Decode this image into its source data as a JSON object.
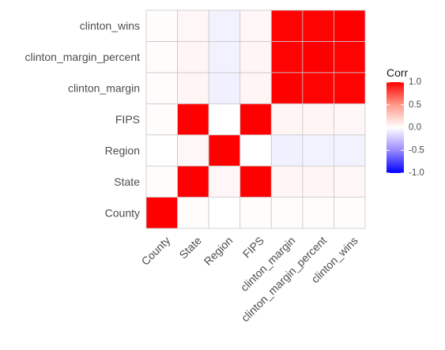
{
  "chart_data": {
    "type": "heatmap",
    "title": "",
    "xlabel": "",
    "ylabel": "",
    "variables": [
      "County",
      "State",
      "Region",
      "FIPS",
      "clinton_margin",
      "clinton_margin_percent",
      "clinton_wins"
    ],
    "x_categories": [
      "County",
      "State",
      "Region",
      "FIPS",
      "clinton_margin",
      "clinton_margin_percent",
      "clinton_wins"
    ],
    "y_categories_bottom_to_top": [
      "County",
      "State",
      "Region",
      "FIPS",
      "clinton_margin",
      "clinton_margin_percent",
      "clinton_wins"
    ],
    "matrix": [
      [
        1.0,
        0.01,
        0.0,
        0.01,
        0.01,
        0.01,
        0.01
      ],
      [
        0.01,
        1.0,
        0.03,
        1.0,
        0.04,
        0.04,
        0.03
      ],
      [
        0.0,
        0.03,
        1.0,
        0.0,
        -0.06,
        -0.05,
        -0.05
      ],
      [
        0.01,
        1.0,
        0.0,
        1.0,
        0.04,
        0.04,
        0.03
      ],
      [
        0.01,
        0.04,
        -0.06,
        0.04,
        1.0,
        0.99,
        0.99
      ],
      [
        0.01,
        0.04,
        -0.05,
        0.04,
        0.99,
        1.0,
        0.99
      ],
      [
        0.01,
        0.03,
        -0.05,
        0.03,
        0.99,
        0.99,
        1.0
      ]
    ],
    "colorscale": {
      "low": "#0000ff",
      "mid": "#ffffff",
      "high": "#ff0000"
    },
    "legend": {
      "title": "Corr",
      "range": [
        -1,
        1
      ],
      "breaks": [
        1.0,
        0.5,
        0.0,
        -0.5,
        -1.0
      ],
      "labels": [
        "1.0",
        "0.5",
        "0.0",
        "-0.5",
        "-1.0"
      ],
      "placement": "right"
    },
    "grid": false,
    "tile_border_color": "#c8c8c8"
  }
}
